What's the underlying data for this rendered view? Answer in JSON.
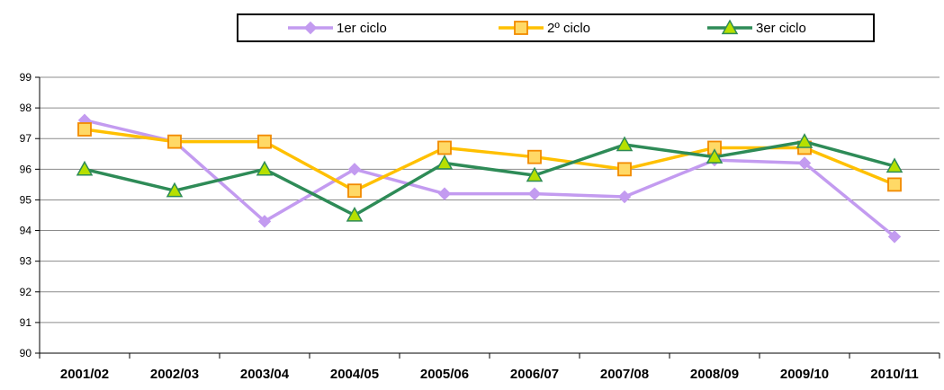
{
  "chart_data": {
    "type": "line",
    "categories": [
      "2001/02",
      "2002/03",
      "2003/04",
      "2004/05",
      "2005/06",
      "2006/07",
      "2007/08",
      "2008/09",
      "2009/10",
      "2010/11"
    ],
    "ylim": [
      90,
      99
    ],
    "yticks": [
      90,
      91,
      92,
      93,
      94,
      95,
      96,
      97,
      98,
      99
    ],
    "grid": true,
    "legend_position": "top",
    "series": [
      {
        "name": "1er ciclo",
        "color": "#c39bf0",
        "marker": "diamond",
        "values": [
          97.6,
          96.9,
          94.3,
          96.0,
          95.2,
          95.2,
          95.1,
          96.3,
          96.2,
          93.8
        ]
      },
      {
        "name": "2º ciclo",
        "color": "#ffc000",
        "marker_fill": "#ffd966",
        "marker_stroke": "#f28a00",
        "marker": "square",
        "values": [
          97.3,
          96.9,
          96.9,
          95.3,
          96.7,
          96.4,
          96.0,
          96.7,
          96.7,
          95.5
        ]
      },
      {
        "name": "3er ciclo",
        "color": "#2e8b57",
        "marker_fill": "#b6e000",
        "marker_stroke": "#2e8b57",
        "marker": "triangle",
        "values": [
          96.0,
          95.3,
          96.0,
          94.5,
          96.2,
          95.8,
          96.8,
          96.4,
          96.9,
          96.1
        ]
      }
    ]
  }
}
